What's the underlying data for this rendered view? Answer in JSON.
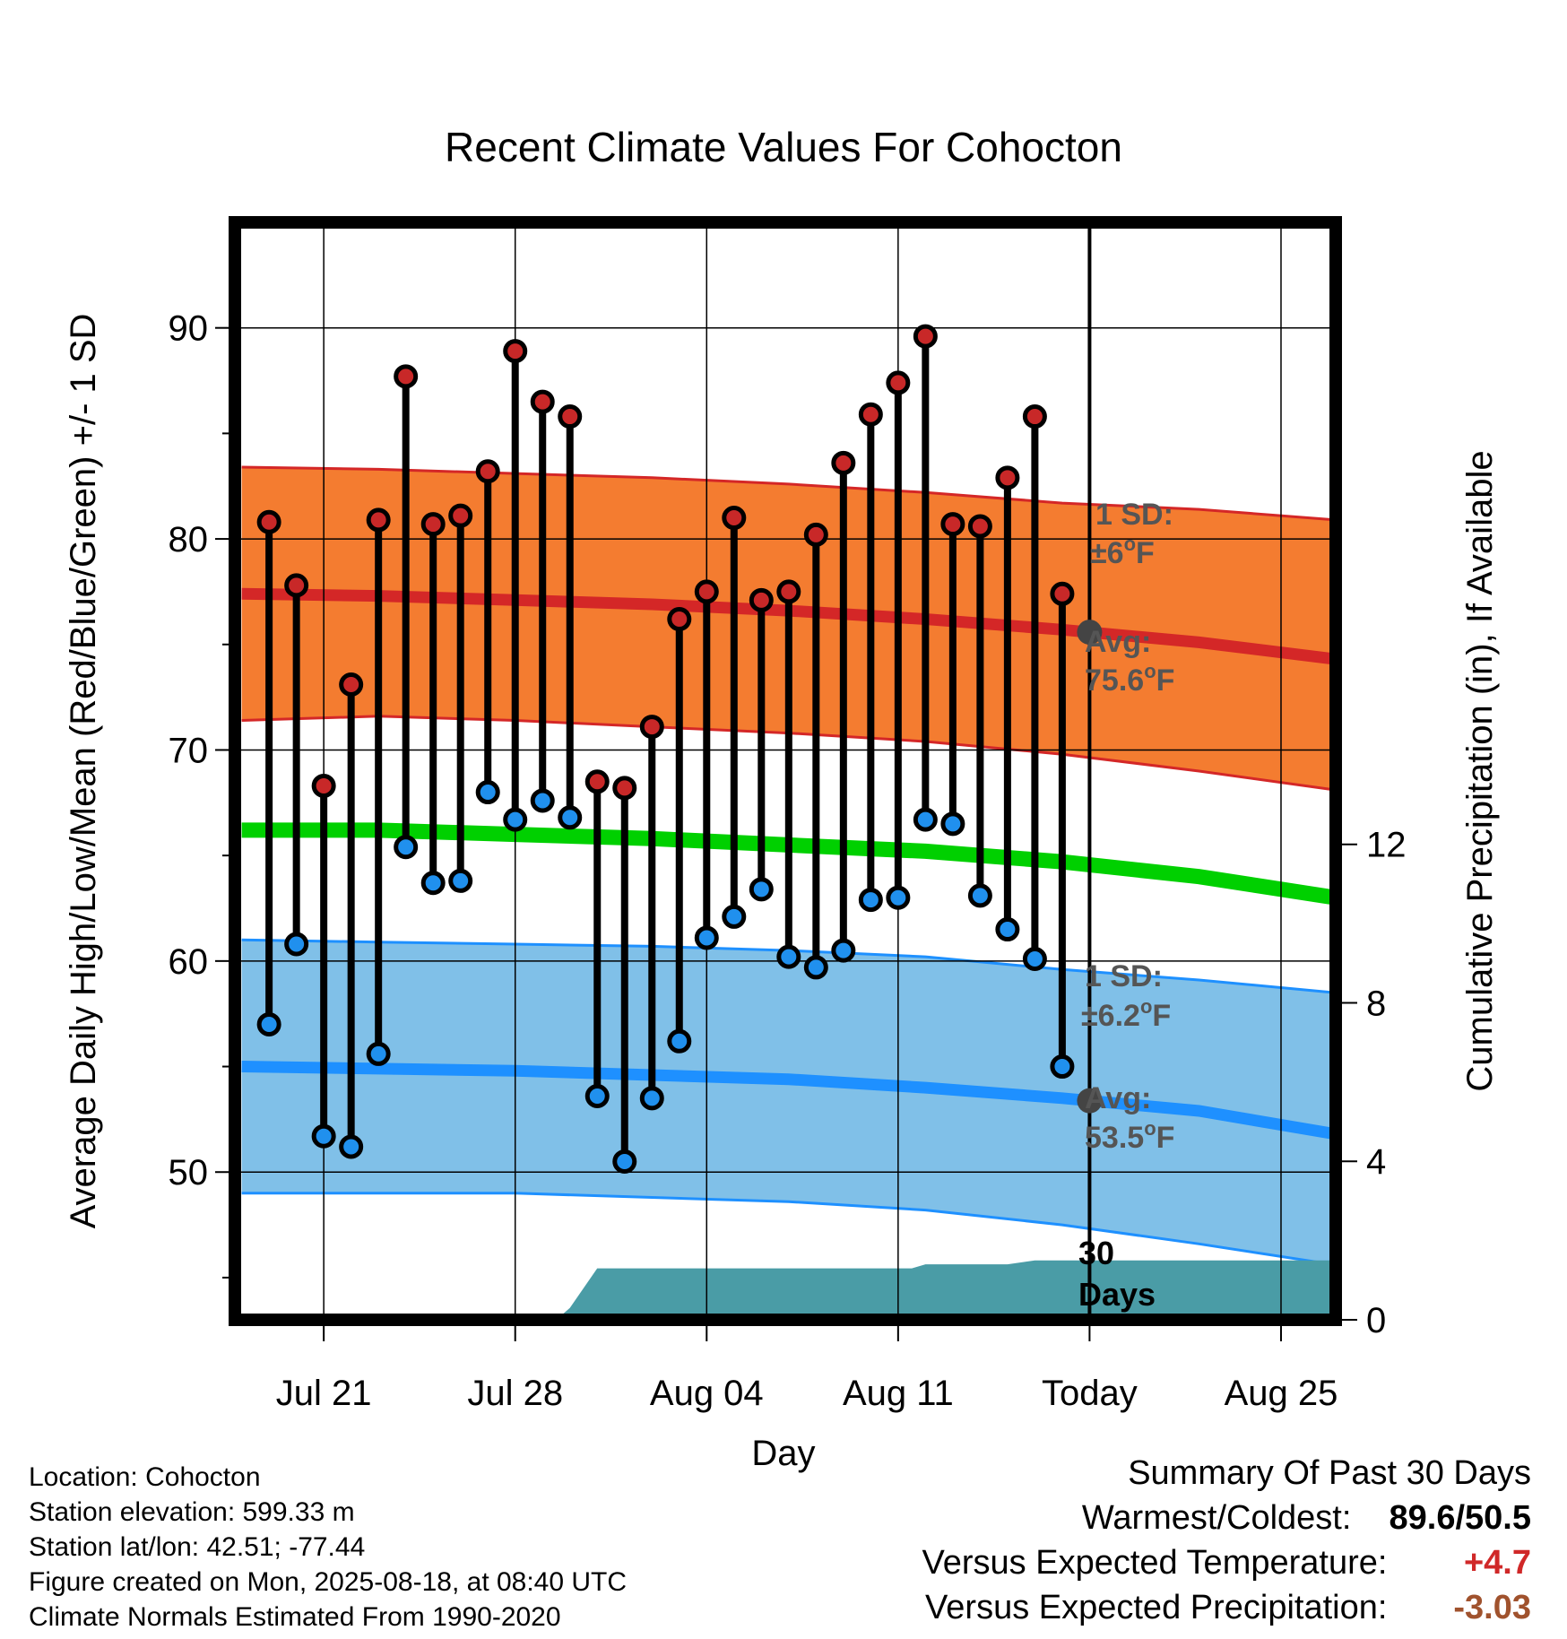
{
  "chart_data": {
    "type": "line",
    "title": "Recent Climate Values For Cohocton",
    "xlabel": "Day",
    "ylabel": "Average Daily High/Low/Mean (Red/Blue/Green) +/- 1 SD",
    "y2label": "Cumulative Precipitation (in), If Available",
    "ylim": [
      43.0,
      95.0
    ],
    "y2lim": [
      0,
      27.7
    ],
    "yticks": [
      50,
      60,
      70,
      80,
      90
    ],
    "y2ticks": [
      0,
      4,
      8,
      12
    ],
    "x_ticks": [
      {
        "label": "Jul 21",
        "day": 3
      },
      {
        "label": "Jul 28",
        "day": 10
      },
      {
        "label": "Aug 04",
        "day": 17
      },
      {
        "label": "Aug 11",
        "day": 24
      },
      {
        "label": "Today",
        "day": 31
      },
      {
        "label": "Aug 25",
        "day": 38
      }
    ],
    "xlim": [
      -0.25,
      40.0
    ],
    "daily_high": [
      80.8,
      77.8,
      68.3,
      73.1,
      80.9,
      87.7,
      80.7,
      81.1,
      83.2,
      88.9,
      86.5,
      85.8,
      68.5,
      68.2,
      71.1,
      76.2,
      77.5,
      81.0,
      77.1,
      77.5,
      80.2,
      83.6,
      85.9,
      87.4,
      89.6,
      80.7,
      80.6,
      82.9,
      85.8,
      77.4
    ],
    "daily_low": [
      57.0,
      60.8,
      51.7,
      51.2,
      55.6,
      65.4,
      63.7,
      63.8,
      68.0,
      66.7,
      67.6,
      66.8,
      53.6,
      50.5,
      53.5,
      56.2,
      61.1,
      62.1,
      63.4,
      60.2,
      59.7,
      60.5,
      62.9,
      63.0,
      66.7,
      66.5,
      63.1,
      61.5,
      60.1,
      55.0
    ],
    "normals": {
      "days": [
        0,
        5,
        10,
        15,
        20,
        25,
        30,
        35,
        40
      ],
      "avg_high": [
        77.4,
        77.3,
        77.1,
        76.9,
        76.6,
        76.2,
        75.7,
        75.1,
        74.3
      ],
      "high_sd_upper": [
        83.4,
        83.3,
        83.1,
        82.9,
        82.6,
        82.2,
        81.7,
        81.4,
        80.9
      ],
      "high_sd_lower": [
        71.4,
        71.6,
        71.4,
        71.1,
        70.8,
        70.4,
        69.8,
        69.0,
        68.1
      ],
      "avg_mean": [
        66.2,
        66.2,
        66.0,
        65.8,
        65.5,
        65.2,
        64.7,
        64.0,
        63.0
      ],
      "avg_low": [
        55.0,
        54.9,
        54.8,
        54.6,
        54.4,
        54.0,
        53.5,
        52.9,
        51.8
      ],
      "low_sd_upper": [
        61.0,
        60.9,
        60.8,
        60.7,
        60.5,
        60.2,
        59.6,
        59.1,
        58.5
      ],
      "low_sd_lower": [
        49.0,
        49.0,
        49.0,
        48.8,
        48.6,
        48.2,
        47.5,
        46.6,
        45.6
      ]
    },
    "precip_cumulative": {
      "days": [
        0,
        11.5,
        12,
        13,
        24.5,
        25,
        28,
        29,
        40
      ],
      "values": [
        0,
        0,
        0.3,
        1.3,
        1.3,
        1.4,
        1.4,
        1.5,
        1.5
      ]
    },
    "today_marker": {
      "day": 31,
      "label_line1": "30",
      "label_line2": "Days"
    },
    "annotations": {
      "high_sd_line1": "1 SD:",
      "high_sd_line2": "±6",
      "high_avg_line1": "Avg:",
      "high_avg_line2": "75.6",
      "low_sd_line1": "1 SD:",
      "low_sd_line2": "±6.2",
      "low_avg_line1": "Avg:",
      "low_avg_line2": "53.5",
      "degree_unit": "o",
      "unit": "F"
    },
    "colors": {
      "high_band": "#f47c30",
      "high_line": "#d42727",
      "mean_line": "#00d000",
      "low_band": "#80c0e8",
      "low_line": "#1e90ff",
      "precip": "#4a9ca6",
      "high_dot": "#c82828",
      "low_dot": "#2090ee",
      "today_dot": "#444444"
    }
  },
  "footer": {
    "location": "Location: Cohocton",
    "elevation": "Station elevation: 599.33 m",
    "latlon": "Station lat/lon: 42.51; -77.44",
    "created": "Figure created on Mon, 2025-08-18, at 08:40 UTC",
    "normals": "Climate Normals Estimated From 1990-2020"
  },
  "summary": {
    "title": "Summary Of Past 30 Days",
    "warm_cold_label": "Warmest/Coldest:",
    "warm_cold_value": "89.6/50.5",
    "temp_label": "Versus Expected Temperature:",
    "temp_value": "+4.7",
    "temp_color": "#d02828",
    "precip_label": "Versus Expected Precipitation:",
    "precip_value": "-3.03",
    "precip_color": "#a0522d"
  }
}
